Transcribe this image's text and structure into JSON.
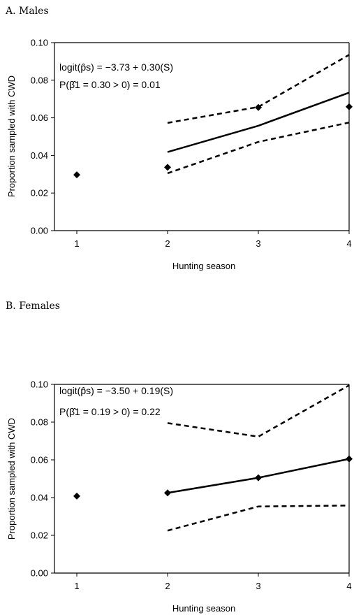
{
  "chart_data": [
    {
      "type": "line",
      "panel_title": "A. Males",
      "xlabel": "Hunting season",
      "ylabel": "Proportion sampled with CWD",
      "xlim": [
        1,
        4
      ],
      "ylim": [
        0,
        0.1
      ],
      "x_ticks": [
        "1",
        "2",
        "3",
        "4"
      ],
      "y_ticks": [
        "0.00",
        "0.02",
        "0.04",
        "0.06",
        "0.08",
        "0.10"
      ],
      "annotation_line1": "logit(p̂s) = −3.73 + 0.30(S)",
      "annotation_line2": "P(β̂1 = 0.30 > 0) = 0.01",
      "series": [
        {
          "style": "markers",
          "x": [
            1,
            2,
            3,
            4
          ],
          "y": [
            0.0297,
            0.0337,
            0.0655,
            0.0659
          ]
        },
        {
          "style": "solid",
          "x": [
            2,
            3,
            4
          ],
          "y": [
            0.0418,
            0.0558,
            0.0734
          ]
        },
        {
          "style": "dashed",
          "x": [
            2,
            3,
            4
          ],
          "y": [
            0.0573,
            0.0658,
            0.0935
          ]
        },
        {
          "style": "dashed",
          "x": [
            2,
            3,
            4
          ],
          "y": [
            0.0305,
            0.0472,
            0.0575
          ]
        }
      ]
    },
    {
      "type": "line",
      "panel_title": "B. Females",
      "xlabel": "Hunting season",
      "ylabel": "Proportion sampled with CWD",
      "xlim": [
        1,
        4
      ],
      "ylim": [
        0,
        0.1
      ],
      "x_ticks": [
        "1",
        "2",
        "3",
        "4"
      ],
      "y_ticks": [
        "0.00",
        "0.02",
        "0.04",
        "0.06",
        "0.08",
        "0.10"
      ],
      "annotation_line1": "logit(p̂s) = −3.50 + 0.19(S)",
      "annotation_line2": "P(β̂1 = 0.19 > 0) = 0.22",
      "series": [
        {
          "style": "markers",
          "x": [
            1,
            2,
            3,
            4
          ],
          "y": [
            0.0408,
            0.0425,
            0.0505,
            0.0605
          ]
        },
        {
          "style": "solid",
          "x": [
            2,
            3,
            4
          ],
          "y": [
            0.0425,
            0.0505,
            0.0605
          ]
        },
        {
          "style": "dashed",
          "x": [
            2,
            3,
            4
          ],
          "y": [
            0.0795,
            0.0723,
            0.0995
          ]
        },
        {
          "style": "dashed",
          "x": [
            2,
            3,
            4
          ],
          "y": [
            0.0225,
            0.0353,
            0.0358
          ]
        }
      ]
    }
  ]
}
